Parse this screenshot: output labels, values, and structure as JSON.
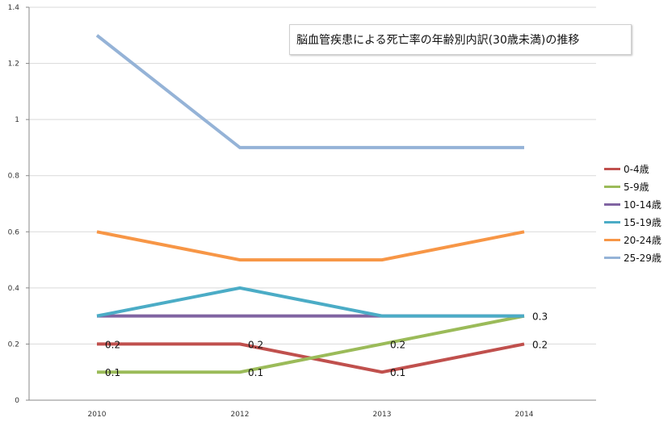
{
  "chart_data": {
    "type": "line",
    "title": "脳血管疾患による死亡率の年齢別内訳(30歳未満)の推移",
    "categories": [
      "2010",
      "2012",
      "2013",
      "2014"
    ],
    "y_ticks": [
      "0",
      "0.2",
      "0.4",
      "0.6",
      "0.8",
      "1",
      "1.2",
      "1.4"
    ],
    "ylim": [
      0,
      1.4
    ],
    "grid": true,
    "legend_position": "right",
    "series": [
      {
        "name": "0-4歳",
        "color": "#c0504d",
        "values": [
          0.2,
          0.2,
          0.1,
          0.2
        ],
        "labels": [
          "0.2",
          "0.2",
          "0.1",
          "0.2"
        ]
      },
      {
        "name": "5-9歳",
        "color": "#9bbb59",
        "values": [
          0.1,
          0.1,
          0.2,
          0.3
        ],
        "labels": [
          "0.1",
          "0.1",
          "0.2",
          ""
        ]
      },
      {
        "name": "10-14歳",
        "color": "#8064a2",
        "values": [
          0.3,
          0.3,
          0.3,
          0.3
        ],
        "labels": [
          "",
          "",
          "",
          ""
        ]
      },
      {
        "name": "15-19歳",
        "color": "#4bacc6",
        "values": [
          0.3,
          0.4,
          0.3,
          0.3
        ],
        "labels": [
          "",
          "",
          "",
          "0.3"
        ]
      },
      {
        "name": "20-24歳",
        "color": "#f79646",
        "values": [
          0.6,
          0.5,
          0.5,
          0.6
        ],
        "labels": [
          "",
          "",
          "",
          ""
        ]
      },
      {
        "name": "25-29歳",
        "color": "#95b3d7",
        "values": [
          1.3,
          0.9,
          0.9,
          0.9
        ],
        "labels": [
          "",
          "",
          "",
          ""
        ]
      }
    ]
  }
}
